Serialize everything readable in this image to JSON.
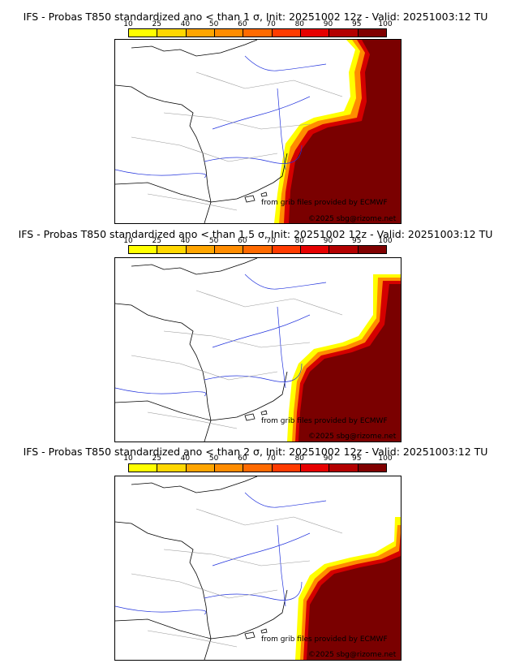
{
  "colorbar": {
    "ticks": [
      "10",
      "25",
      "40",
      "50",
      "60",
      "70",
      "80",
      "90",
      "95",
      "100"
    ],
    "colors": [
      "#ffff00",
      "#ffd700",
      "#ffa500",
      "#ff8c00",
      "#ff6a00",
      "#ff3b00",
      "#e60000",
      "#b30000",
      "#800000"
    ]
  },
  "panels": [
    {
      "title": "IFS - Probas T850  standardized ano < than 1 σ, Init: 20251002 12z - Valid: 20251003:12 TU"
    },
    {
      "title": "IFS - Probas T850  standardized ano < than 1.5 σ, Init: 20251002 12z - Valid: 20251003:12 TU"
    },
    {
      "title": "IFS - Probas T850  standardized ano < than 2 σ, Init: 20251002 12z - Valid: 20251003:12 TU"
    }
  ],
  "credits": {
    "source": "from grib files provided by ECMWF",
    "copyright": "©2025 sbg@rizome.net"
  }
}
